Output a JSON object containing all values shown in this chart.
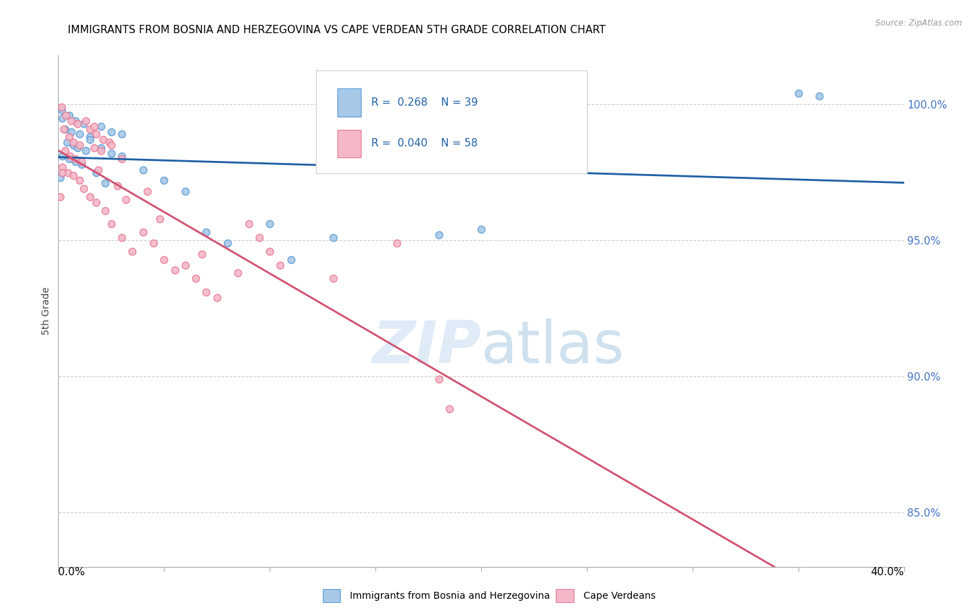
{
  "title": "IMMIGRANTS FROM BOSNIA AND HERZEGOVINA VS CAPE VERDEAN 5TH GRADE CORRELATION CHART",
  "source": "Source: ZipAtlas.com",
  "ylabel": "5th Grade",
  "xlim": [
    0.0,
    40.0
  ],
  "ylim": [
    83.0,
    101.8
  ],
  "yticks": [
    85.0,
    90.0,
    95.0,
    100.0
  ],
  "ytick_labels": [
    "85.0%",
    "90.0%",
    "95.0%",
    "100.0%"
  ],
  "xticks": [
    0,
    5,
    10,
    15,
    20,
    25,
    30,
    35,
    40
  ],
  "legend_r_blue": "0.268",
  "legend_n_blue": "39",
  "legend_r_pink": "0.040",
  "legend_n_pink": "58",
  "legend_label_blue": "Immigrants from Bosnia and Herzegovina",
  "legend_label_pink": "Cape Verdeans",
  "blue_fill": "#A8C8E8",
  "pink_fill": "#F4B8C8",
  "blue_edge": "#5B9BD5",
  "pink_edge": "#E87A96",
  "trend_blue": "#1F5FA6",
  "trend_pink": "#D05070",
  "grid_color": "#cccccc",
  "watermark_color": "#D0E4F5",
  "dot_size": 55,
  "blue_dots": [
    [
      0.2,
      99.5
    ],
    [
      0.5,
      99.6
    ],
    [
      0.8,
      99.4
    ],
    [
      1.2,
      99.3
    ],
    [
      0.3,
      99.1
    ],
    [
      0.6,
      99.0
    ],
    [
      1.0,
      98.9
    ],
    [
      1.5,
      98.8
    ],
    [
      0.4,
      98.6
    ],
    [
      0.7,
      98.5
    ],
    [
      0.9,
      98.4
    ],
    [
      1.3,
      98.3
    ],
    [
      0.2,
      98.1
    ],
    [
      0.5,
      98.0
    ],
    [
      0.8,
      97.9
    ],
    [
      1.1,
      97.8
    ],
    [
      1.5,
      98.7
    ],
    [
      2.0,
      98.4
    ],
    [
      2.5,
      98.2
    ],
    [
      3.0,
      98.1
    ],
    [
      2.0,
      99.2
    ],
    [
      2.5,
      99.0
    ],
    [
      3.0,
      98.9
    ],
    [
      4.0,
      97.6
    ],
    [
      5.0,
      97.2
    ],
    [
      6.0,
      96.8
    ],
    [
      7.0,
      95.3
    ],
    [
      8.0,
      94.9
    ],
    [
      10.0,
      95.6
    ],
    [
      11.0,
      94.3
    ],
    [
      13.0,
      95.1
    ],
    [
      18.0,
      95.2
    ],
    [
      20.0,
      95.4
    ],
    [
      35.0,
      100.4
    ],
    [
      36.0,
      100.3
    ],
    [
      0.1,
      97.3
    ],
    [
      0.15,
      99.8
    ],
    [
      1.8,
      97.5
    ],
    [
      2.2,
      97.1
    ]
  ],
  "pink_dots": [
    [
      0.15,
      99.9
    ],
    [
      0.35,
      99.6
    ],
    [
      0.6,
      99.4
    ],
    [
      0.9,
      99.3
    ],
    [
      0.25,
      99.1
    ],
    [
      0.5,
      98.8
    ],
    [
      0.7,
      98.6
    ],
    [
      1.0,
      98.5
    ],
    [
      0.3,
      98.3
    ],
    [
      0.55,
      98.1
    ],
    [
      0.8,
      98.0
    ],
    [
      1.1,
      97.9
    ],
    [
      0.2,
      97.7
    ],
    [
      0.45,
      97.5
    ],
    [
      0.7,
      97.4
    ],
    [
      1.0,
      97.2
    ],
    [
      1.5,
      99.1
    ],
    [
      1.8,
      98.9
    ],
    [
      2.1,
      98.7
    ],
    [
      2.4,
      98.6
    ],
    [
      1.3,
      99.4
    ],
    [
      1.7,
      99.2
    ],
    [
      2.0,
      98.3
    ],
    [
      2.5,
      98.5
    ],
    [
      3.0,
      98.0
    ],
    [
      1.2,
      96.9
    ],
    [
      1.5,
      96.6
    ],
    [
      1.8,
      96.4
    ],
    [
      2.2,
      96.1
    ],
    [
      2.5,
      95.6
    ],
    [
      3.0,
      95.1
    ],
    [
      3.5,
      94.6
    ],
    [
      4.0,
      95.3
    ],
    [
      4.5,
      94.9
    ],
    [
      5.0,
      94.3
    ],
    [
      5.5,
      93.9
    ],
    [
      6.0,
      94.1
    ],
    [
      6.5,
      93.6
    ],
    [
      7.0,
      93.1
    ],
    [
      7.5,
      92.9
    ],
    [
      9.0,
      95.6
    ],
    [
      9.5,
      95.1
    ],
    [
      10.0,
      94.6
    ],
    [
      10.5,
      94.1
    ],
    [
      13.0,
      93.6
    ],
    [
      16.0,
      94.9
    ],
    [
      18.0,
      89.9
    ],
    [
      18.5,
      88.8
    ],
    [
      0.1,
      96.6
    ],
    [
      0.18,
      97.5
    ],
    [
      1.7,
      98.4
    ],
    [
      1.9,
      97.6
    ],
    [
      2.8,
      97.0
    ],
    [
      3.2,
      96.5
    ],
    [
      4.2,
      96.8
    ],
    [
      4.8,
      95.8
    ],
    [
      6.8,
      94.5
    ],
    [
      8.5,
      93.8
    ]
  ]
}
